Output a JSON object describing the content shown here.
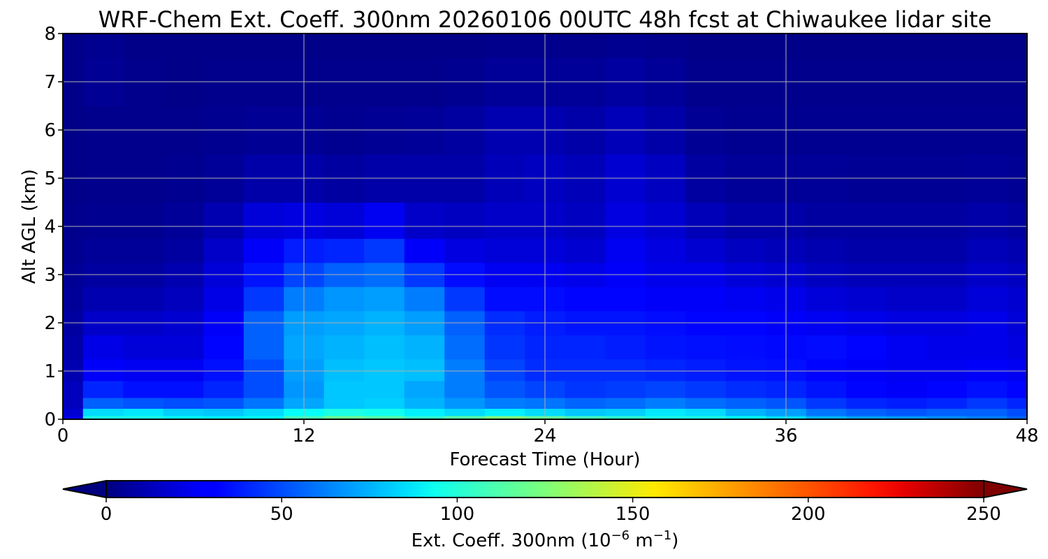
{
  "chart_data": {
    "type": "heatmap",
    "title": "WRF-Chem Ext. Coeff. 300nm  20260106 00UTC 48h fcst at Chiwaukee lidar site",
    "xlabel": "Forecast Time (Hour)",
    "ylabel": "Alt AGL (km)",
    "xlim": [
      0,
      48
    ],
    "ylim": [
      0,
      8
    ],
    "xticks": [
      "0",
      "12",
      "24",
      "36",
      "48"
    ],
    "yticks": [
      "0",
      "1",
      "2",
      "3",
      "4",
      "5",
      "6",
      "7",
      "8"
    ],
    "grid": true,
    "colormap": "jet",
    "colorbar": {
      "range": [
        0,
        250
      ],
      "extend": "both",
      "ticks": [
        "0",
        "50",
        "100",
        "150",
        "200",
        "250"
      ],
      "label_prefix": "Ext. Coeff. 300nm  (10",
      "label_exp1": "−6",
      "label_mid": " m",
      "label_exp2": "−1",
      "label_suffix": ")"
    },
    "grid_x_hours": [
      0,
      2,
      4,
      6,
      8,
      10,
      12,
      14,
      16,
      18,
      20,
      22,
      24,
      26,
      28,
      30,
      32,
      34,
      36,
      38,
      40,
      42,
      44,
      46,
      48
    ],
    "grid_alt_km": [
      0.0,
      0.15,
      0.3,
      0.6,
      1.0,
      1.5,
      2.0,
      2.5,
      3.0,
      3.5,
      4.0,
      5.0,
      6.0,
      7.0,
      8.0
    ],
    "values": [
      [
        25,
        100,
        100,
        95,
        92,
        95,
        110,
        120,
        115,
        105,
        115,
        125,
        118,
        110,
        105,
        100,
        100,
        95,
        85,
        75,
        70,
        68,
        65,
        62,
        55
      ],
      [
        20,
        85,
        88,
        82,
        80,
        85,
        95,
        100,
        98,
        90,
        85,
        90,
        85,
        80,
        82,
        88,
        85,
        75,
        70,
        60,
        55,
        52,
        55,
        55,
        50
      ],
      [
        15,
        55,
        52,
        50,
        52,
        60,
        72,
        80,
        82,
        75,
        68,
        62,
        60,
        56,
        58,
        62,
        58,
        55,
        52,
        45,
        40,
        38,
        40,
        45,
        40
      ],
      [
        15,
        40,
        35,
        35,
        40,
        50,
        68,
        80,
        80,
        72,
        62,
        52,
        48,
        44,
        46,
        48,
        45,
        42,
        40,
        36,
        32,
        30,
        32,
        35,
        32
      ],
      [
        12,
        30,
        28,
        28,
        35,
        50,
        70,
        78,
        80,
        78,
        62,
        48,
        42,
        42,
        42,
        40,
        38,
        36,
        35,
        32,
        30,
        28,
        28,
        30,
        28
      ],
      [
        10,
        25,
        22,
        22,
        32,
        55,
        72,
        75,
        78,
        75,
        58,
        44,
        40,
        40,
        38,
        36,
        35,
        34,
        33,
        34,
        32,
        28,
        26,
        26,
        24
      ],
      [
        8,
        18,
        18,
        20,
        30,
        55,
        70,
        72,
        75,
        70,
        55,
        42,
        38,
        36,
        36,
        34,
        32,
        32,
        30,
        28,
        26,
        24,
        24,
        26,
        22
      ],
      [
        6,
        12,
        12,
        15,
        25,
        45,
        62,
        68,
        70,
        62,
        45,
        34,
        34,
        32,
        32,
        30,
        30,
        28,
        26,
        22,
        20,
        18,
        18,
        22,
        20
      ],
      [
        5,
        8,
        8,
        12,
        22,
        36,
        48,
        55,
        58,
        45,
        34,
        28,
        28,
        26,
        30,
        26,
        26,
        22,
        20,
        16,
        14,
        14,
        14,
        18,
        16
      ],
      [
        4,
        6,
        6,
        8,
        18,
        30,
        38,
        40,
        45,
        30,
        24,
        22,
        22,
        20,
        28,
        24,
        20,
        16,
        14,
        12,
        10,
        10,
        10,
        14,
        12
      ],
      [
        3,
        4,
        4,
        6,
        12,
        22,
        24,
        22,
        28,
        18,
        16,
        18,
        18,
        16,
        24,
        20,
        14,
        10,
        10,
        8,
        8,
        8,
        8,
        10,
        8
      ],
      [
        2,
        3,
        3,
        4,
        6,
        10,
        10,
        8,
        10,
        10,
        10,
        14,
        16,
        14,
        20,
        16,
        8,
        6,
        6,
        6,
        5,
        5,
        5,
        6,
        5
      ],
      [
        2,
        3,
        3,
        3,
        4,
        5,
        5,
        4,
        5,
        6,
        8,
        12,
        12,
        10,
        14,
        10,
        5,
        4,
        4,
        4,
        4,
        4,
        4,
        4,
        4
      ],
      [
        2,
        5,
        3,
        2,
        3,
        3,
        3,
        3,
        3,
        3,
        4,
        6,
        6,
        6,
        8,
        6,
        3,
        3,
        3,
        3,
        3,
        3,
        3,
        3,
        3
      ],
      [
        2,
        4,
        2,
        2,
        2,
        2,
        2,
        2,
        2,
        2,
        2,
        3,
        3,
        3,
        4,
        3,
        2,
        2,
        2,
        2,
        2,
        2,
        2,
        2,
        2
      ]
    ]
  }
}
